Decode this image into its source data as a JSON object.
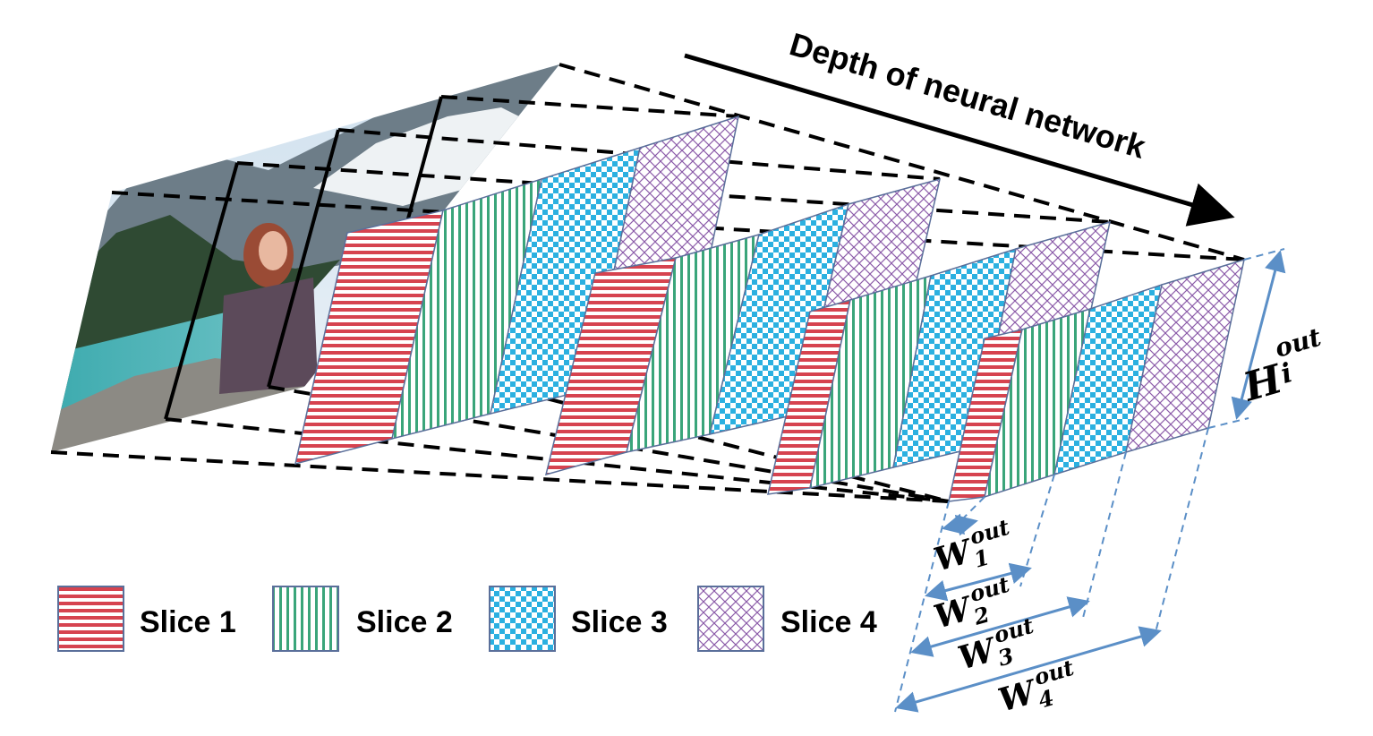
{
  "title": "Depth of neural network",
  "legend": [
    {
      "label": "Slice 1",
      "pattern": "horizontal-stripes",
      "color": "#d6434f"
    },
    {
      "label": "Slice 2",
      "pattern": "vertical-stripes",
      "color": "#3aa57a"
    },
    {
      "label": "Slice 3",
      "pattern": "checkerboard",
      "color": "#2bb0e0"
    },
    {
      "label": "Slice 4",
      "pattern": "diamond-lattice",
      "color": "#8a5aa8"
    }
  ],
  "height_label": {
    "base": "H",
    "sup": "out",
    "sub": "i"
  },
  "width_labels": [
    {
      "base": "W",
      "sup": "out",
      "sub": "1"
    },
    {
      "base": "W",
      "sup": "out",
      "sub": "2"
    },
    {
      "base": "W",
      "sup": "out",
      "sub": "3"
    },
    {
      "base": "W",
      "sup": "out",
      "sub": "4"
    }
  ],
  "colors": {
    "outline": "#5a6f9a",
    "dimension": "#5b8fc7",
    "arrow": "#000000"
  }
}
